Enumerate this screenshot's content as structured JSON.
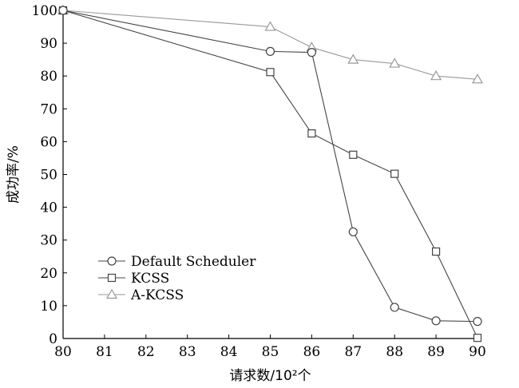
{
  "chart_data": {
    "type": "line",
    "xlabel": "请求数/10²个",
    "ylabel": "成功率/%",
    "xlim": [
      80,
      90
    ],
    "ylim": [
      0,
      100
    ],
    "x_ticks": [
      "80",
      "81",
      "82",
      "83",
      "84",
      "85",
      "86",
      "87",
      "88",
      "89",
      "90"
    ],
    "y_ticks": [
      "0",
      "10",
      "20",
      "30",
      "40",
      "50",
      "60",
      "70",
      "80",
      "90",
      "100"
    ],
    "legend_position": "bottom-left",
    "series": [
      {
        "name": "Default Scheduler",
        "marker": "circle",
        "color": "#444444",
        "x": [
          80,
          85,
          86,
          87,
          88,
          89,
          90
        ],
        "y": [
          100,
          87.5,
          87.2,
          32.5,
          9.5,
          5.4,
          5.2
        ]
      },
      {
        "name": "KCSS",
        "marker": "square",
        "color": "#444444",
        "x": [
          80,
          85,
          86,
          87,
          88,
          89,
          90
        ],
        "y": [
          100,
          81.2,
          62.5,
          56,
          50.2,
          26.5,
          0.2
        ]
      },
      {
        "name": "A-KCSS",
        "marker": "triangle",
        "color": "#999999",
        "x": [
          80,
          85,
          86,
          87,
          88,
          89,
          90
        ],
        "y": [
          100,
          95,
          88.7,
          85,
          83.8,
          80,
          79
        ]
      }
    ]
  }
}
